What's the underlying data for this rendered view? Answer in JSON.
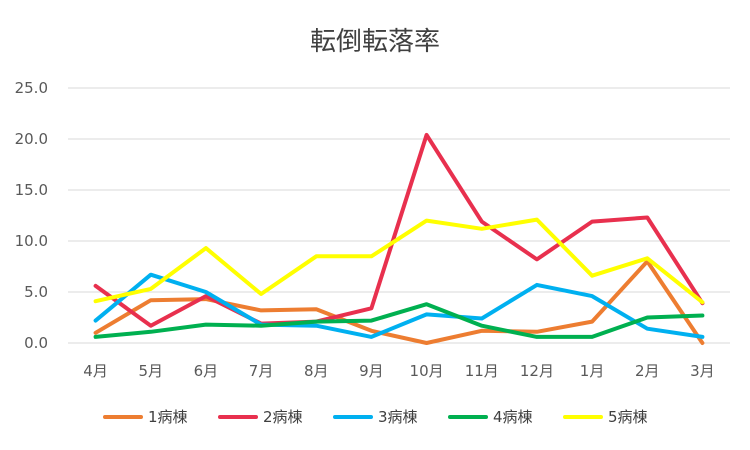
{
  "chart_data": {
    "type": "line",
    "title": "転倒転落率",
    "xlabel": "",
    "ylabel": "",
    "ylim": [
      0,
      25
    ],
    "y_ticks": [
      "0.0",
      "5.0",
      "10.0",
      "15.0",
      "20.0",
      "25.0"
    ],
    "grid": true,
    "legend_position": "bottom",
    "categories": [
      "4月",
      "5月",
      "6月",
      "7月",
      "8月",
      "9月",
      "10月",
      "11月",
      "12月",
      "1月",
      "2月",
      "3月"
    ],
    "series": [
      {
        "name": "1病棟",
        "color": "#ED7D31",
        "values": [
          1.0,
          4.2,
          4.3,
          3.2,
          3.3,
          1.2,
          0.0,
          1.2,
          1.1,
          2.1,
          8.0,
          0.0
        ]
      },
      {
        "name": "2病棟",
        "color": "#E8304E",
        "values": [
          5.6,
          1.7,
          4.6,
          1.9,
          2.1,
          3.4,
          20.4,
          11.9,
          8.2,
          11.9,
          12.3,
          3.9
        ]
      },
      {
        "name": "3病棟",
        "color": "#00B0F0",
        "values": [
          2.2,
          6.7,
          5.0,
          1.8,
          1.7,
          0.6,
          2.8,
          2.4,
          5.7,
          4.6,
          1.4,
          0.6
        ]
      },
      {
        "name": "4病棟",
        "color": "#00B050",
        "values": [
          0.6,
          1.1,
          1.8,
          1.7,
          2.1,
          2.2,
          3.8,
          1.7,
          0.6,
          0.6,
          2.5,
          2.7
        ]
      },
      {
        "name": "5病棟",
        "color": "#FFFF00",
        "values": [
          4.1,
          5.3,
          9.3,
          4.8,
          8.5,
          8.5,
          12.0,
          11.2,
          12.1,
          6.6,
          8.3,
          4.0
        ]
      }
    ]
  }
}
